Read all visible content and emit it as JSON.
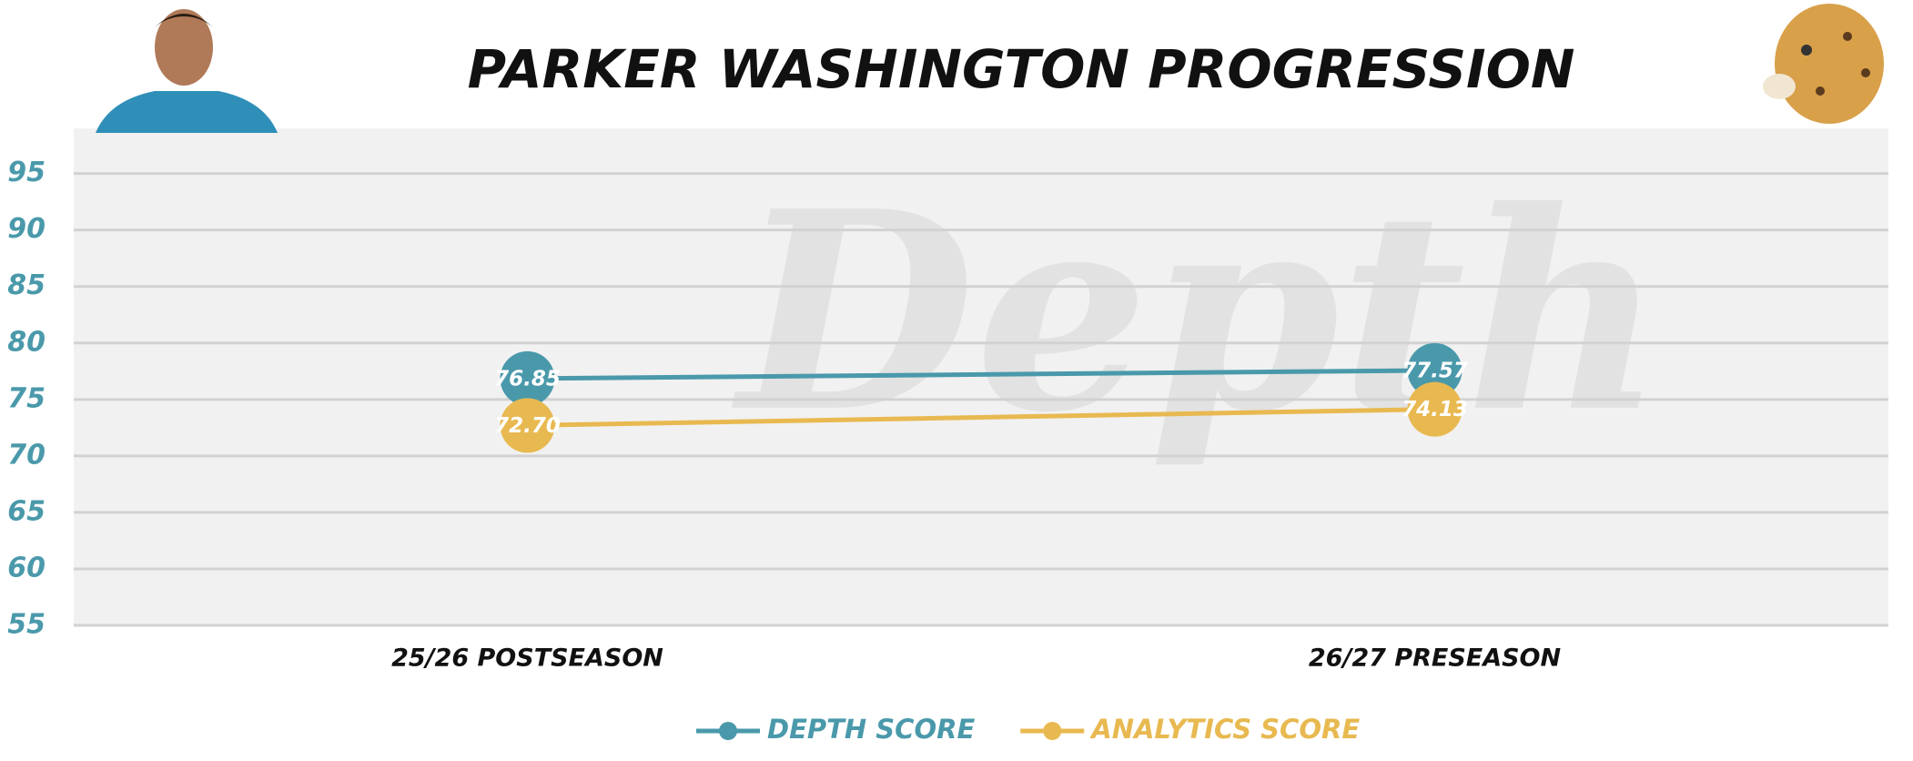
{
  "chart_data": {
    "type": "line",
    "title": "PARKER WASHINGTON PROGRESSION",
    "watermark": "Depth",
    "categories": [
      "25/26 POSTSEASON",
      "26/27 PRESEASON"
    ],
    "series": [
      {
        "name": "DEPTH SCORE",
        "color": "#4a99ab",
        "values": [
          76.85,
          77.57
        ],
        "value_labels": [
          "76.85",
          "77.57"
        ]
      },
      {
        "name": "ANALYTICS SCORE",
        "color": "#e8b950",
        "values": [
          72.7,
          74.13
        ],
        "value_labels": [
          "72.70",
          "74.13"
        ]
      }
    ],
    "ylim": [
      55,
      99
    ],
    "yticks": [
      55,
      60,
      65,
      70,
      75,
      80,
      85,
      90,
      95
    ],
    "grid": true,
    "legend": "bottom"
  }
}
